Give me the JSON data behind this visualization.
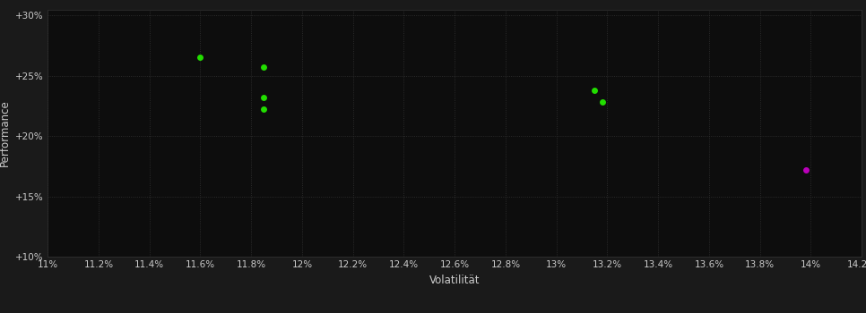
{
  "background_color": "#1a1a1a",
  "plot_bg_color": "#0d0d0d",
  "grid_color": "#333333",
  "xlabel": "Volatilität",
  "ylabel": "Performance",
  "xlim": [
    0.11,
    0.142
  ],
  "ylim": [
    0.1,
    0.305
  ],
  "xticks": [
    0.11,
    0.112,
    0.114,
    0.116,
    0.118,
    0.12,
    0.122,
    0.124,
    0.126,
    0.128,
    0.13,
    0.132,
    0.134,
    0.136,
    0.138,
    0.14,
    0.142
  ],
  "yticks": [
    0.1,
    0.15,
    0.2,
    0.25,
    0.3
  ],
  "xtick_labels": [
    "11%",
    "11.2%",
    "11.4%",
    "11.6%",
    "11.8%",
    "12%",
    "12.2%",
    "12.4%",
    "12.6%",
    "12.8%",
    "13%",
    "13.2%",
    "13.4%",
    "13.6%",
    "13.8%",
    "14%",
    "14.2%"
  ],
  "ytick_labels": [
    "+10%",
    "+15%",
    "+20%",
    "+25%",
    "+30%"
  ],
  "green_points": [
    [
      0.116,
      0.265
    ],
    [
      0.1185,
      0.257
    ],
    [
      0.1185,
      0.232
    ],
    [
      0.1185,
      0.222
    ],
    [
      0.1315,
      0.238
    ],
    [
      0.1318,
      0.228
    ]
  ],
  "magenta_points": [
    [
      0.1398,
      0.172
    ]
  ],
  "green_color": "#22dd00",
  "magenta_color": "#bb00bb",
  "marker_size": 5,
  "tick_color": "#cccccc",
  "axis_label_color": "#cccccc",
  "tick_fontsize": 7.5,
  "axis_label_fontsize": 8.5
}
